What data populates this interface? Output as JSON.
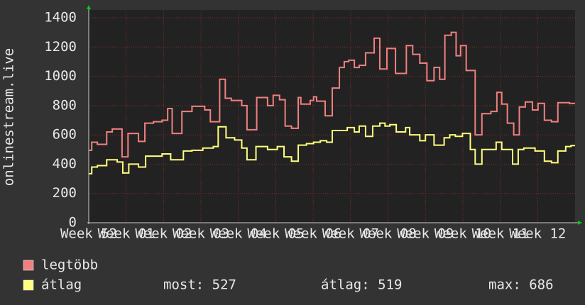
{
  "chart_data": {
    "type": "step-line",
    "y_label": "onlinestream.live",
    "xlim": [
      0,
      13
    ],
    "xticks": [
      {
        "value": 0,
        "label": "Week 52"
      },
      {
        "value": 1,
        "label": "Week 01"
      },
      {
        "value": 2,
        "label": "Week 02"
      },
      {
        "value": 3,
        "label": "Week 03"
      },
      {
        "value": 4,
        "label": "Week 04"
      },
      {
        "value": 5,
        "label": "Week 05"
      },
      {
        "value": 6,
        "label": "Week 06"
      },
      {
        "value": 7,
        "label": "Week 07"
      },
      {
        "value": 8,
        "label": "Week 08"
      },
      {
        "value": 9,
        "label": "Week 09"
      },
      {
        "value": 10,
        "label": "Week 10"
      },
      {
        "value": 11,
        "label": "Week 11"
      },
      {
        "value": 12,
        "label": "Week 12"
      }
    ],
    "ylim": [
      0,
      1400
    ],
    "yticks": [
      0,
      200,
      400,
      600,
      800,
      1000,
      1200,
      1400
    ],
    "grid": true,
    "series": [
      {
        "name": "legtöbb",
        "color": "#f08080",
        "x": [
          0,
          0.08,
          0.23,
          0.48,
          0.63,
          0.89,
          1.05,
          1.33,
          1.5,
          1.73,
          1.96,
          2.11,
          2.23,
          2.49,
          2.76,
          3.1,
          3.25,
          3.5,
          3.65,
          3.81,
          4.09,
          4.23,
          4.49,
          4.78,
          4.93,
          5.1,
          5.25,
          5.42,
          5.6,
          5.67,
          5.92,
          6.01,
          6.09,
          6.32,
          6.51,
          6.7,
          6.83,
          6.95,
          7.1,
          7.23,
          7.4,
          7.63,
          7.78,
          7.97,
          8.2,
          8.49,
          8.66,
          8.85,
          9.04,
          9.23,
          9.38,
          9.52,
          9.69,
          9.82,
          9.94,
          10.09,
          10.33,
          10.51,
          10.75,
          10.91,
          11.04,
          11.19,
          11.36,
          11.51,
          11.67,
          11.86,
          12.01,
          12.18,
          12.37,
          12.54,
          12.85
        ],
        "values": [
          495,
          550,
          535,
          620,
          640,
          450,
          610,
          555,
          680,
          690,
          700,
          780,
          610,
          760,
          795,
          770,
          690,
          980,
          850,
          835,
          800,
          635,
          855,
          800,
          870,
          840,
          660,
          645,
          855,
          810,
          835,
          860,
          830,
          730,
          920,
          1060,
          1100,
          1110,
          1060,
          1075,
          1160,
          1260,
          1050,
          1190,
          1020,
          1210,
          1150,
          1090,
          970,
          1060,
          980,
          1280,
          1300,
          1140,
          1210,
          1040,
          600,
          745,
          760,
          890,
          810,
          680,
          600,
          790,
          825,
          770,
          815,
          700,
          690,
          820,
          815
        ]
      },
      {
        "name": "átlag",
        "color": "#ffff80",
        "x": [
          0,
          0.08,
          0.23,
          0.48,
          0.76,
          0.91,
          1.07,
          1.33,
          1.52,
          1.96,
          2.19,
          2.53,
          2.76,
          3.05,
          3.33,
          3.46,
          3.67,
          3.9,
          4.09,
          4.23,
          4.47,
          4.78,
          5.04,
          5.22,
          5.42,
          5.6,
          5.82,
          6.01,
          6.19,
          6.36,
          6.51,
          6.91,
          7.1,
          7.23,
          7.4,
          7.59,
          7.78,
          7.92,
          8.05,
          8.22,
          8.47,
          8.58,
          8.85,
          9.0,
          9.23,
          9.5,
          9.65,
          9.8,
          9.99,
          10.2,
          10.33,
          10.51,
          10.89,
          11.04,
          11.33,
          11.48,
          11.63,
          11.93,
          12.18,
          12.37,
          12.54,
          12.75,
          12.89
        ],
        "values": [
          335,
          380,
          390,
          430,
          415,
          340,
          400,
          380,
          455,
          470,
          430,
          490,
          495,
          510,
          520,
          655,
          580,
          565,
          510,
          430,
          520,
          500,
          520,
          450,
          420,
          530,
          540,
          550,
          560,
          550,
          630,
          650,
          620,
          660,
          590,
          660,
          680,
          660,
          670,
          620,
          650,
          600,
          560,
          600,
          530,
          580,
          600,
          590,
          610,
          500,
          400,
          500,
          550,
          500,
          400,
          500,
          510,
          490,
          420,
          410,
          490,
          520,
          527
        ]
      }
    ],
    "stats": [
      "most: 527",
      "átlag: 519",
      "max: 686"
    ]
  }
}
